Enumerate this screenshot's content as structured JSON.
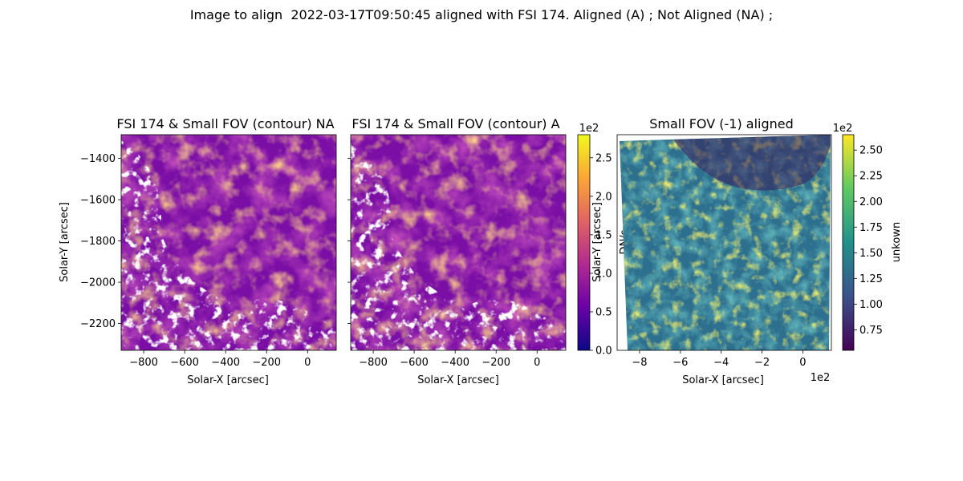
{
  "figure": {
    "suptitle": "Image to align  2022-03-17T09:50:45 aligned with FSI 174. Aligned (A) ; Not Aligned (NA) ;"
  },
  "colors": {
    "contour": "#ffffff",
    "plasma": [
      "#0d0887",
      "#6a00a8",
      "#b12a90",
      "#e16462",
      "#fca636",
      "#f0f921"
    ],
    "viridis": [
      "#440154",
      "#3b528b",
      "#21918c",
      "#5ec962",
      "#fde725"
    ]
  },
  "chart_data": [
    {
      "type": "heatmap",
      "colormap": "plasma",
      "title": "FSI 174 & Small FOV (contour) NA",
      "xlabel": "Solar-X [arcsec]",
      "ylabel": "Solar-Y [arcsec]",
      "xlim": [
        -910,
        140
      ],
      "ylim": [
        -2330,
        -1285
      ],
      "xticks": [
        -800,
        -600,
        -400,
        -200,
        0
      ],
      "yticks": [
        -2200,
        -2000,
        -1800,
        -1600,
        -1400
      ],
      "contour_overlay": true
    },
    {
      "type": "heatmap",
      "colormap": "plasma",
      "title": "FSI 174 & Small FOV (contour) A",
      "xlabel": "Solar-X [arcsec]",
      "ylabel": "",
      "xlim": [
        -910,
        140
      ],
      "ylim": [
        -2330,
        -1285
      ],
      "xticks": [
        -800,
        -600,
        -400,
        -200,
        0
      ],
      "yticks": [
        -2200,
        -2000,
        -1800,
        -1600,
        -1400
      ],
      "contour_overlay": true,
      "colorbar": {
        "label": "DN/s",
        "offset_text": "1e2",
        "range": [
          0,
          2.8
        ],
        "ticks": [
          "0.0",
          "0.5",
          "1.0",
          "1.5",
          "2.0",
          "2.5"
        ]
      }
    },
    {
      "type": "heatmap",
      "colormap": "viridis",
      "title": "Small FOV (-1) aligned",
      "xlabel": "Solar-X [arcsec]",
      "ylabel": "Solar-Y [arcsec]",
      "x_offset_text": "1e2",
      "xlim": [
        -9.1,
        1.4
      ],
      "xticks": [
        "-8",
        "-6",
        "-4",
        "-2",
        "0"
      ],
      "colorbar": {
        "label": "unkown",
        "offset_text": "1e2",
        "range": [
          0.55,
          2.65
        ],
        "ticks": [
          "0.75",
          "1.00",
          "1.25",
          "1.50",
          "1.75",
          "2.00",
          "2.25",
          "2.50"
        ]
      }
    }
  ]
}
